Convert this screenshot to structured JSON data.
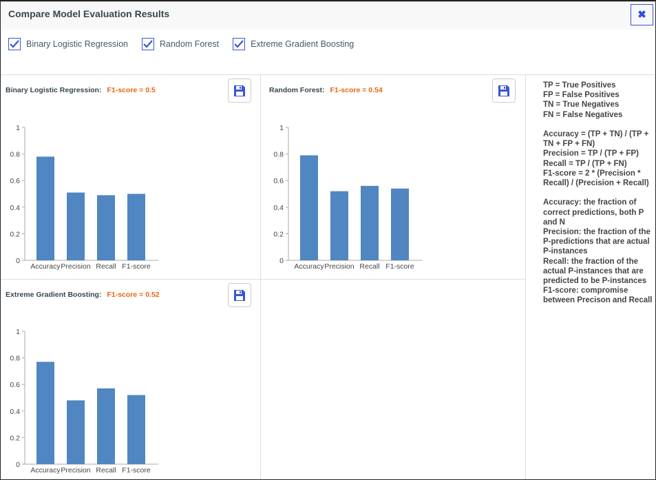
{
  "window": {
    "title": "Compare Model Evaluation Results",
    "close_label": "✖"
  },
  "models": [
    {
      "label": "Binary Logistic Regression",
      "checked": true
    },
    {
      "label": "Random Forest",
      "checked": true
    },
    {
      "label": "Extreme Gradient Boosting",
      "checked": true
    }
  ],
  "colors": {
    "bar": "#5086c1",
    "accent": "#3a55d6",
    "f1": "#e8650f"
  },
  "chart_data": [
    {
      "type": "bar",
      "title": "Binary Logistic Regression:",
      "subtitle": "F1-score = 0.5",
      "categories": [
        "Accuracy",
        "Precision",
        "Recall",
        "F1-score"
      ],
      "values": [
        0.78,
        0.51,
        0.49,
        0.5
      ],
      "yticks": [
        "0",
        "0.2",
        "0.4",
        "0.6",
        "0.8",
        "1"
      ],
      "ylim": [
        0,
        1
      ]
    },
    {
      "type": "bar",
      "title": "Random Forest:",
      "subtitle": "F1-score = 0.54",
      "categories": [
        "Accuracy",
        "Precision",
        "Recall",
        "F1-score"
      ],
      "values": [
        0.79,
        0.52,
        0.56,
        0.54
      ],
      "yticks": [
        "0",
        "0.2",
        "0.4",
        "0.6",
        "0.8",
        "1"
      ],
      "ylim": [
        0,
        1
      ]
    },
    {
      "type": "bar",
      "title": "Extreme Gradient Boosting:",
      "subtitle": "F1-score = 0.52",
      "categories": [
        "Accuracy",
        "Precision",
        "Recall",
        "F1-score"
      ],
      "values": [
        0.77,
        0.48,
        0.57,
        0.52
      ],
      "yticks": [
        "0",
        "0.2",
        "0.4",
        "0.6",
        "0.8",
        "1"
      ],
      "ylim": [
        0,
        1
      ]
    }
  ],
  "info": {
    "text": "TP = True Positives\nFP = False Positives\nTN = True Negatives\nFN = False Negatives\n\nAccuracy = (TP + TN) / (TP + TN + FP + FN)\nPrecision = TP / (TP + FP)\nRecall = TP / (TP + FN)\nF1-score = 2 * (Precision * Recall) / (Precision + Recall)\n\nAccuracy: the fraction of correct predictions, both P and N\nPrecision: the fraction of the P-predictions that are actual P-instances\nRecall: the fraction of the actual P-instances that are predicted to be P-instances\nF1-score: compromise between Precison and Recall"
  }
}
